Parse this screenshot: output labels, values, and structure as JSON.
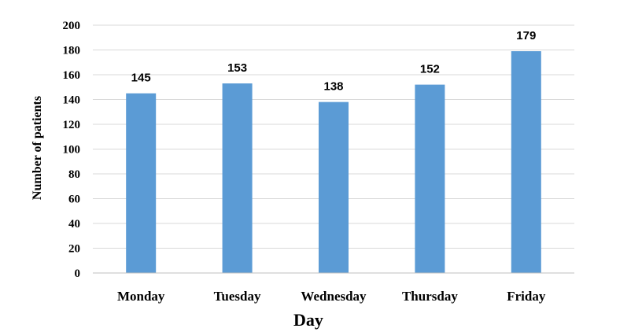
{
  "chart_data": {
    "type": "bar",
    "categories": [
      "Monday",
      "Tuesday",
      "Wednesday",
      "Thursday",
      "Friday"
    ],
    "values": [
      145,
      153,
      138,
      152,
      179
    ],
    "data_labels": [
      "145",
      "153",
      "138",
      "152",
      "179"
    ],
    "xlabel": "Day",
    "ylabel": "Number of patients",
    "ylim": [
      0,
      200
    ],
    "yticks": [
      0,
      20,
      40,
      60,
      80,
      100,
      120,
      140,
      160,
      180,
      200
    ],
    "grid": true,
    "legend": "none",
    "colors": {
      "bar": "#5B9BD5",
      "grid": "#D9D9D9",
      "axis": "#BFBFBF"
    }
  }
}
